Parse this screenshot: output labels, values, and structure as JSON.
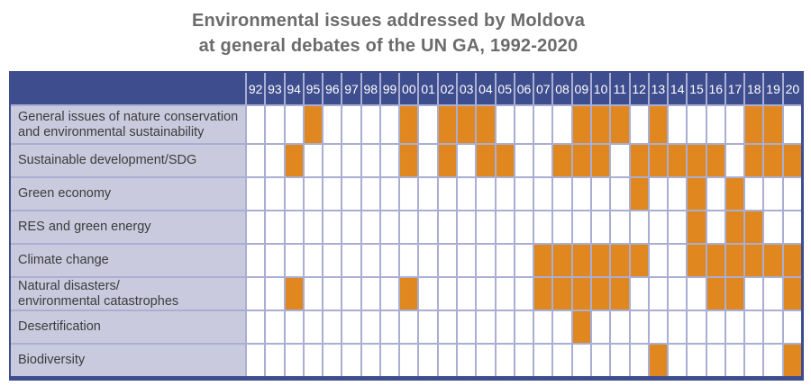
{
  "title": {
    "line1": "Environmental issues addressed by Moldova",
    "line2": "at general debates of the UN GA, 1992-2020"
  },
  "colors": {
    "filled_cell": "#e0871f",
    "empty_cell": "#ffffff",
    "header_bg": "#3e4d8e",
    "grid_line": "#a9aed2",
    "label_bg": "#c9cade",
    "title_text": "#6b6b6b",
    "label_text": "#3c3c3c",
    "header_text": "#ffffff"
  },
  "chart_data": {
    "type": "heatmap",
    "title": "Environmental issues addressed by Moldova at general debates of the UN GA, 1992-2020",
    "x_labels": [
      "92",
      "93",
      "94",
      "95",
      "96",
      "97",
      "98",
      "99",
      "00",
      "01",
      "02",
      "03",
      "04",
      "05",
      "06",
      "07",
      "08",
      "09",
      "10",
      "11",
      "12",
      "13",
      "14",
      "15",
      "16",
      "17",
      "18",
      "19",
      "20"
    ],
    "legend_position": "none",
    "grid": true,
    "rows": [
      {
        "label": "General issues of nature conservation\nand environmental sustainability",
        "filled_years": [
          "95",
          "00",
          "02",
          "03",
          "04",
          "09",
          "10",
          "11",
          "13",
          "18",
          "19"
        ]
      },
      {
        "label": "Sustainable development/SDG",
        "filled_years": [
          "94",
          "00",
          "02",
          "04",
          "05",
          "08",
          "09",
          "10",
          "12",
          "13",
          "14",
          "15",
          "16",
          "18",
          "19",
          "20"
        ]
      },
      {
        "label": "Green economy",
        "filled_years": [
          "12",
          "15",
          "17"
        ]
      },
      {
        "label": "RES and green energy",
        "filled_years": [
          "15",
          "17",
          "18"
        ]
      },
      {
        "label": "Climate change",
        "filled_years": [
          "07",
          "08",
          "09",
          "10",
          "11",
          "12",
          "15",
          "16",
          "17",
          "18",
          "19",
          "20"
        ]
      },
      {
        "label": "Natural disasters/\nenvironmental catastrophes",
        "filled_years": [
          "94",
          "00",
          "07",
          "08",
          "09",
          "10",
          "11",
          "16",
          "17",
          "20"
        ]
      },
      {
        "label": "Desertification",
        "filled_years": [
          "09"
        ]
      },
      {
        "label": "Biodiversity",
        "filled_years": [
          "13",
          "20"
        ]
      }
    ]
  }
}
